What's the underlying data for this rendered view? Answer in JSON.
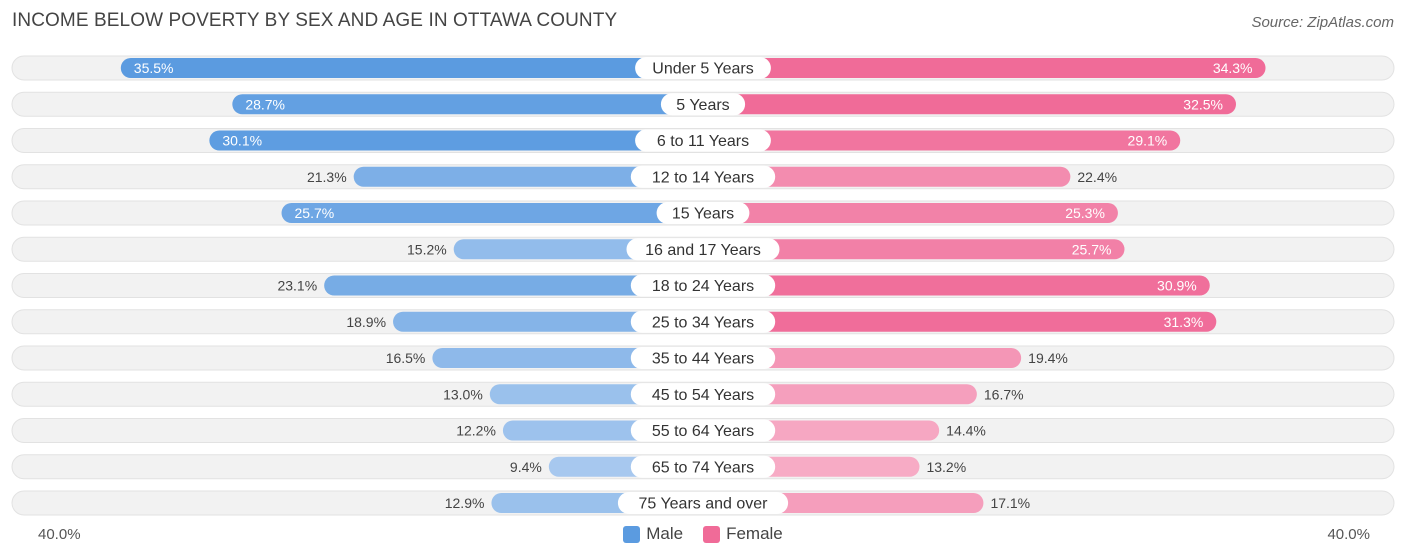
{
  "title": "INCOME BELOW POVERTY BY SEX AND AGE IN OTTAWA COUNTY",
  "source": "Source: ZipAtlas.com",
  "axis": {
    "left_label": "40.0%",
    "right_label": "40.0%"
  },
  "legend": {
    "male_label": "Male",
    "female_label": "Female"
  },
  "colors": {
    "male_strong": "#5b9be0",
    "male_light": "#a8c9ef",
    "female_strong": "#f06b98",
    "female_light": "#f7afc8",
    "track": "#efefef"
  },
  "chart_data": {
    "type": "bar",
    "orientation": "horizontal-diverging",
    "title": "INCOME BELOW POVERTY BY SEX AND AGE IN OTTAWA COUNTY",
    "xlim": [
      0,
      40
    ],
    "unit": "%",
    "categories": [
      "Under 5 Years",
      "5 Years",
      "6 to 11 Years",
      "12 to 14 Years",
      "15 Years",
      "16 and 17 Years",
      "18 to 24 Years",
      "25 to 34 Years",
      "35 to 44 Years",
      "45 to 54 Years",
      "55 to 64 Years",
      "65 to 74 Years",
      "75 Years and over"
    ],
    "series": [
      {
        "name": "Male",
        "values": [
          35.5,
          28.7,
          30.1,
          21.3,
          25.7,
          15.2,
          23.1,
          18.9,
          16.5,
          13.0,
          12.2,
          9.4,
          12.9
        ],
        "labels": [
          "35.5%",
          "28.7%",
          "30.1%",
          "21.3%",
          "25.7%",
          "15.2%",
          "23.1%",
          "18.9%",
          "16.5%",
          "13.0%",
          "12.2%",
          "9.4%",
          "12.9%"
        ]
      },
      {
        "name": "Female",
        "values": [
          34.3,
          32.5,
          29.1,
          22.4,
          25.3,
          25.7,
          30.9,
          31.3,
          19.4,
          16.7,
          14.4,
          13.2,
          17.1
        ],
        "labels": [
          "34.3%",
          "32.5%",
          "29.1%",
          "22.4%",
          "25.3%",
          "25.7%",
          "30.9%",
          "31.3%",
          "19.4%",
          "16.7%",
          "14.4%",
          "13.2%",
          "17.1%"
        ]
      }
    ],
    "legend_position": "bottom-center"
  }
}
